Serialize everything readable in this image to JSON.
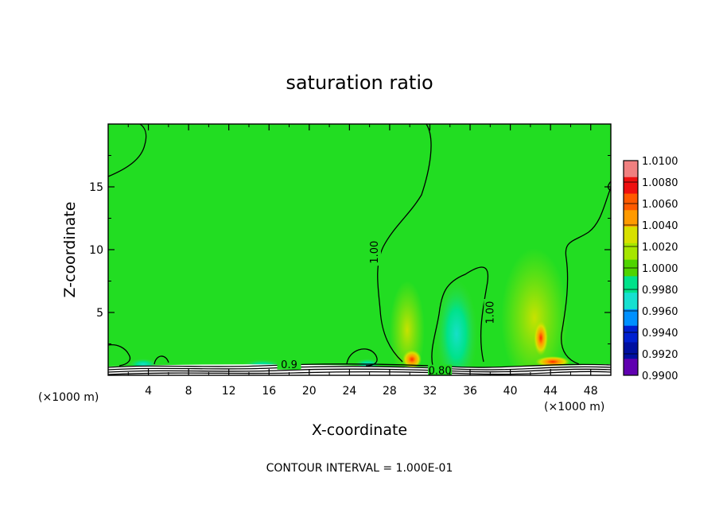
{
  "chart_data": {
    "type": "heatmap",
    "title": "saturation ratio",
    "xlabel": "X-coordinate",
    "ylabel": "Z-coordinate",
    "x_unit_left": "(×1000 m)",
    "x_unit_right": "(×1000 m)",
    "xlim": [
      0,
      50
    ],
    "ylim": [
      0,
      20
    ],
    "x_ticks": [
      "4",
      "8",
      "12",
      "16",
      "20",
      "24",
      "28",
      "32",
      "36",
      "40",
      "44",
      "48"
    ],
    "x_tick_values": [
      4,
      8,
      12,
      16,
      20,
      24,
      28,
      32,
      36,
      40,
      44,
      48
    ],
    "y_ticks": [
      "5",
      "10",
      "15"
    ],
    "y_tick_values": [
      5,
      10,
      15
    ],
    "colorbar": {
      "labels": [
        "1.0100",
        "1.0080",
        "1.0060",
        "1.0040",
        "1.0020",
        "1.0000",
        "0.9980",
        "0.9960",
        "0.9940",
        "0.9920",
        "0.9900"
      ],
      "colors": [
        "#f08080",
        "#ee1010",
        "#ff5a00",
        "#ff9a00",
        "#d8e000",
        "#a6e600",
        "#4fd400",
        "#00e28a",
        "#16e0d0",
        "#0090ff",
        "#0020d0",
        "#0010a0",
        "#6000b0"
      ]
    },
    "contour_labels": [
      {
        "text": "1.00",
        "x": 26.5,
        "z": 9.8
      },
      {
        "text": "1.00",
        "x": 38.0,
        "z": 5.0
      },
      {
        "text": "0.80",
        "x": 33.0,
        "z": 0.4
      },
      {
        "text": "0.9",
        "x": 18.0,
        "z": 0.9
      }
    ],
    "footer": "CONTOUR INTERVAL = 1.000E-01",
    "colors": {
      "field": "#22dd22",
      "contour": "#000000"
    }
  }
}
